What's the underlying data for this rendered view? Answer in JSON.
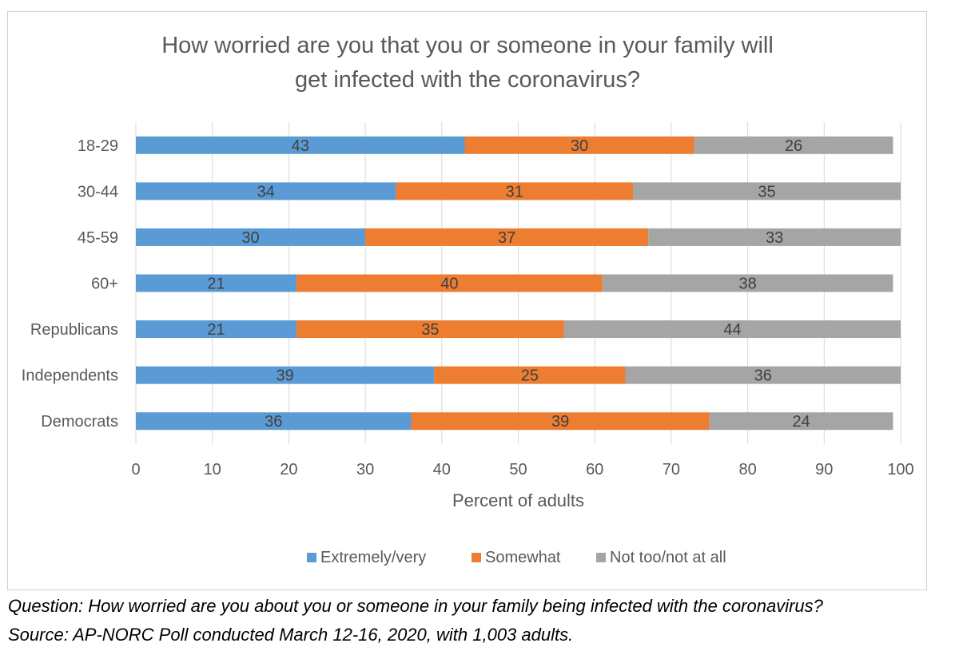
{
  "chart_data": {
    "type": "bar",
    "orientation": "horizontal",
    "stacked": true,
    "title": "How worried are you that you or someone in your family will get infected with the coronavirus?",
    "title_lines": [
      "How worried are you that you or someone in your family will",
      "get infected with the coronavirus?"
    ],
    "xlabel": "Percent of adults",
    "ylabel": "",
    "xlim": [
      0,
      100
    ],
    "x_ticks": [
      "0",
      "10",
      "20",
      "30",
      "40",
      "50",
      "60",
      "70",
      "80",
      "90",
      "100"
    ],
    "grid": "vertical",
    "legend_position": "bottom",
    "categories": [
      "18-29",
      "30-44",
      "45-59",
      "60+",
      "Republicans",
      "Independents",
      "Democrats"
    ],
    "series": [
      {
        "name": "Extremely/very",
        "color": "#5b9bd5",
        "values": [
          43,
          34,
          30,
          21,
          21,
          39,
          36
        ]
      },
      {
        "name": "Somewhat",
        "color": "#ed7d31",
        "values": [
          30,
          31,
          37,
          40,
          35,
          25,
          39
        ]
      },
      {
        "name": "Not too/not at all",
        "color": "#a5a5a5",
        "values": [
          26,
          35,
          33,
          38,
          44,
          36,
          24
        ]
      }
    ]
  },
  "notes": {
    "question": "Question: How worried are you about you or someone in your family being infected with the coronavirus?",
    "source": "Source: AP-NORC Poll conducted March 12-16, 2020, with 1,003 adults."
  }
}
